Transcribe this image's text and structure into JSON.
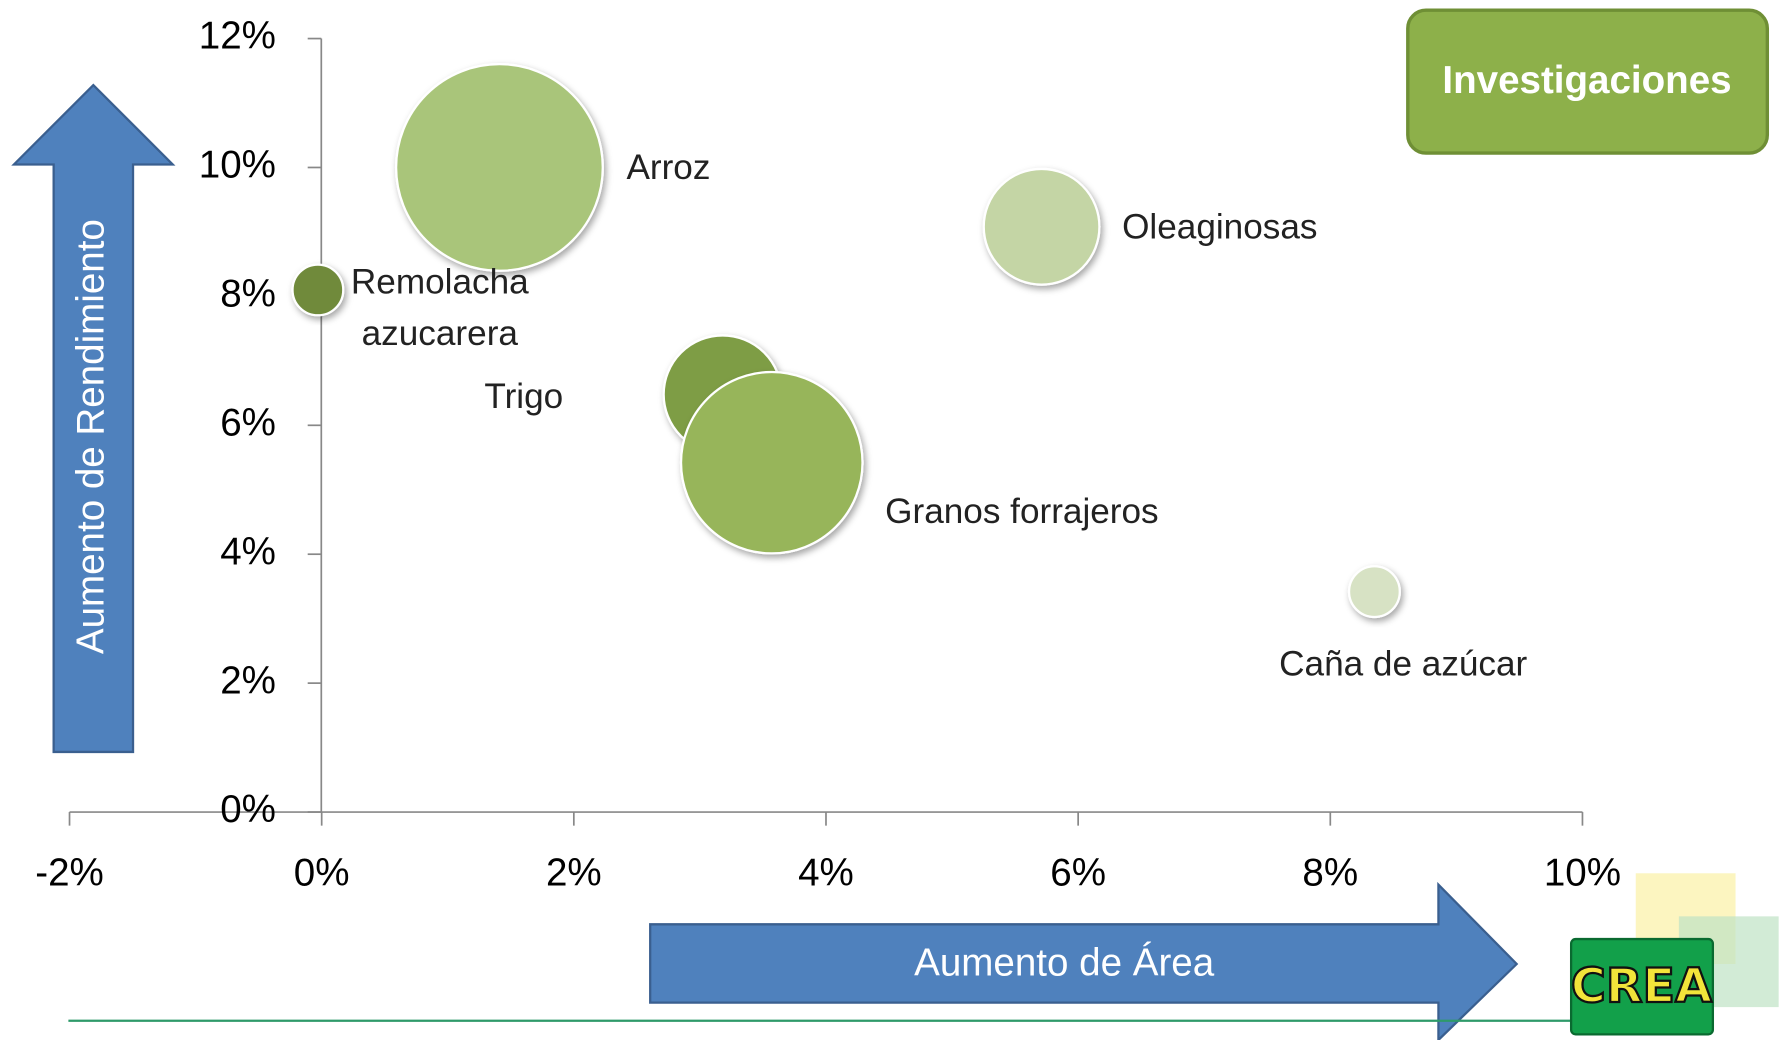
{
  "chart_data": {
    "type": "bubble",
    "xlabel": "Aumento de Área",
    "ylabel": "Aumento de Rendimiento",
    "badge": "Investigaciones",
    "logo": "CREA",
    "xlim": [
      -2,
      10
    ],
    "ylim": [
      0,
      12
    ],
    "xticks": [
      {
        "value": -2,
        "label": "-2%"
      },
      {
        "value": 0,
        "label": "0%"
      },
      {
        "value": 2,
        "label": "2%"
      },
      {
        "value": 4,
        "label": "4%"
      },
      {
        "value": 6,
        "label": "6%"
      },
      {
        "value": 8,
        "label": "8%"
      },
      {
        "value": 10,
        "label": "10%"
      }
    ],
    "yticks": [
      {
        "value": 0,
        "label": "0%"
      },
      {
        "value": 2,
        "label": "2%"
      },
      {
        "value": 4,
        "label": "4%"
      },
      {
        "value": 6,
        "label": "6%"
      },
      {
        "value": 8,
        "label": "8%"
      },
      {
        "value": 10,
        "label": "10%"
      },
      {
        "value": 12,
        "label": "12%"
      }
    ],
    "series": [
      {
        "name": "Arroz",
        "color": "#a9c57a",
        "x": [
          1.41
        ],
        "values": [
          10.0
        ],
        "sizes": [
          83
        ]
      },
      {
        "name": "Remolacha azucarera",
        "color": "#6f8a3a",
        "x": [
          -0.03
        ],
        "values": [
          8.1
        ],
        "sizes": [
          5
        ]
      },
      {
        "name": "Trigo",
        "color": "#7e9d45",
        "x": [
          3.18
        ],
        "values": [
          6.48
        ],
        "sizes": [
          27
        ]
      },
      {
        "name": "Granos forrajeros",
        "color": "#97b55a",
        "x": [
          3.57
        ],
        "values": [
          5.42
        ],
        "sizes": [
          64
        ]
      },
      {
        "name": "Oleaginosas",
        "color": "#c4d5a5",
        "x": [
          5.71
        ],
        "values": [
          9.08
        ],
        "sizes": [
          26
        ]
      },
      {
        "name": "Caña de azúcar",
        "color": "#d7e2c4",
        "x": [
          8.35
        ],
        "values": [
          3.42
        ],
        "sizes": [
          5
        ]
      }
    ]
  }
}
